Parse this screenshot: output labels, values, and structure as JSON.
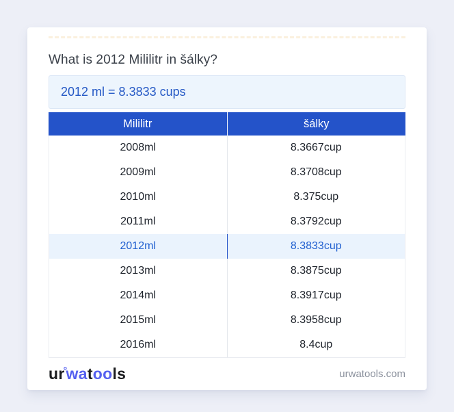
{
  "title": "What is 2012 Mililitr in šálky?",
  "answer": {
    "text": "2012 ml = 8.3833 cups"
  },
  "table": {
    "header": {
      "col1": "Mililitr",
      "col2": "šálky"
    },
    "rows": [
      {
        "ml": "2008ml",
        "cup": "8.3667cup"
      },
      {
        "ml": "2009ml",
        "cup": "8.3708cup"
      },
      {
        "ml": "2010ml",
        "cup": "8.375cup"
      },
      {
        "ml": "2011ml",
        "cup": "8.3792cup"
      },
      {
        "ml": "2012ml",
        "cup": "8.3833cup"
      },
      {
        "ml": "2013ml",
        "cup": "8.3875cup"
      },
      {
        "ml": "2014ml",
        "cup": "8.3917cup"
      },
      {
        "ml": "2015ml",
        "cup": "8.3958cup"
      },
      {
        "ml": "2016ml",
        "cup": "8.4cup"
      }
    ],
    "highlighted_row_value": "2012ml"
  },
  "footer": {
    "logo": {
      "part1": "ur",
      "ring": "°",
      "part2": "wa",
      "part3": "t",
      "part4": "oo",
      "part5": "ls"
    },
    "domain": "urwatools.com"
  },
  "colors": {
    "page_background": "#edeff7",
    "card_background": "#ffffff",
    "header_blue": "#2453c9",
    "answer_box_background": "#edf5fd",
    "answer_text_blue": "#2458c5",
    "highlight_row_background": "#eaf3fd",
    "highlight_row_text": "#2160d0",
    "logo_blue": "#5661f0"
  }
}
